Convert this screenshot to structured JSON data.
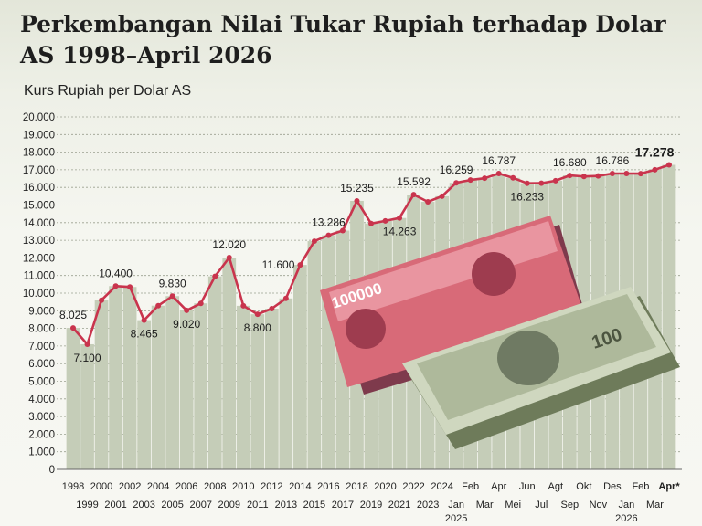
{
  "page": {
    "title": "Perkembangan Nilai Tukar Rupiah terhadap Dolar AS 1998–April 2026",
    "subtitle": "Kurs Rupiah per Dolar AS"
  },
  "colors": {
    "line": "#c9344d",
    "bar": "#c5cdb8",
    "grid": "#9aa08f"
  },
  "banknotes": {
    "rupiah": "100000",
    "dollar": "100"
  },
  "chart_data": {
    "type": "line",
    "ylim": [
      0,
      20000
    ],
    "yticks": [
      0,
      1000,
      2000,
      3000,
      4000,
      5000,
      6000,
      7000,
      8000,
      9000,
      10000,
      11000,
      12000,
      13000,
      14000,
      15000,
      16000,
      17000,
      18000,
      19000,
      20000
    ],
    "ytick_labels": [
      "0",
      "1.000",
      "2.000",
      "3.000",
      "4.000",
      "5.000",
      "6.000",
      "7.000",
      "8.000",
      "9.000",
      "10.000",
      "11.000",
      "12.000",
      "13.000",
      "14.000",
      "15.000",
      "16.000",
      "17.000",
      "18.000",
      "19.000",
      "20.000"
    ],
    "categories": [
      "1998",
      "1999",
      "2000",
      "2001",
      "2002",
      "2003",
      "2004",
      "2005",
      "2006",
      "2007",
      "2008",
      "2009",
      "2010",
      "2011",
      "2012",
      "2013",
      "2014",
      "2015",
      "2016",
      "2017",
      "2018",
      "2019",
      "2020",
      "2021",
      "2022",
      "2023",
      "2024",
      "Jan 2025",
      "Feb",
      "Mar",
      "Apr",
      "Mei",
      "Jun",
      "Jul",
      "Agt",
      "Sep",
      "Okt",
      "Nov",
      "Des",
      "Jan 2026",
      "Feb",
      "Mar",
      "Apr*"
    ],
    "xtick_labels": [
      {
        "text": "1998",
        "row": 0
      },
      {
        "text": "1999",
        "row": 1
      },
      {
        "text": "2000",
        "row": 0
      },
      {
        "text": "2001",
        "row": 1
      },
      {
        "text": "2002",
        "row": 0
      },
      {
        "text": "2003",
        "row": 1
      },
      {
        "text": "2004",
        "row": 0
      },
      {
        "text": "2005",
        "row": 1
      },
      {
        "text": "2006",
        "row": 0
      },
      {
        "text": "2007",
        "row": 1
      },
      {
        "text": "2008",
        "row": 0
      },
      {
        "text": "2009",
        "row": 1
      },
      {
        "text": "2010",
        "row": 0
      },
      {
        "text": "2011",
        "row": 1
      },
      {
        "text": "2012",
        "row": 0
      },
      {
        "text": "2013",
        "row": 1
      },
      {
        "text": "2014",
        "row": 0
      },
      {
        "text": "2015",
        "row": 1
      },
      {
        "text": "2016",
        "row": 0
      },
      {
        "text": "2017",
        "row": 1
      },
      {
        "text": "2018",
        "row": 0
      },
      {
        "text": "2019",
        "row": 1
      },
      {
        "text": "2020",
        "row": 0
      },
      {
        "text": "2021",
        "row": 1
      },
      {
        "text": "2022",
        "row": 0
      },
      {
        "text": "2023",
        "row": 1
      },
      {
        "text": "2024",
        "row": 0
      },
      {
        "text": "Jan",
        "row": 1
      },
      {
        "text": "Feb",
        "row": 0
      },
      {
        "text": "Mar",
        "row": 1
      },
      {
        "text": "Apr",
        "row": 0
      },
      {
        "text": "Mei",
        "row": 1
      },
      {
        "text": "Jun",
        "row": 0
      },
      {
        "text": "Jul",
        "row": 1
      },
      {
        "text": "Agt",
        "row": 0
      },
      {
        "text": "Sep",
        "row": 1
      },
      {
        "text": "Okt",
        "row": 0
      },
      {
        "text": "Nov",
        "row": 1
      },
      {
        "text": "Des",
        "row": 0
      },
      {
        "text": "Jan",
        "row": 1
      },
      {
        "text": "Feb",
        "row": 0
      },
      {
        "text": "Mar",
        "row": 1
      },
      {
        "text": "Apr*",
        "row": 0,
        "bold": true
      }
    ],
    "year_labels": [
      {
        "text": "2025",
        "index": 27
      },
      {
        "text": "2026",
        "index": 39
      }
    ],
    "series": [
      {
        "values": [
          8025,
          7100,
          9600,
          10400,
          10350,
          8465,
          9290,
          9830,
          9020,
          9420,
          10950,
          12020,
          9280,
          8800,
          9120,
          9700,
          11600,
          12950,
          13286,
          13550,
          15235,
          13950,
          14100,
          14263,
          15592,
          15180,
          15500,
          16259,
          16420,
          16520,
          16787,
          16540,
          16233,
          16240,
          16380,
          16680,
          16620,
          16650,
          16786,
          16790,
          16780,
          17000,
          17278
        ]
      }
    ],
    "data_labels": [
      {
        "index": 0,
        "text": "8.025",
        "pos": "above"
      },
      {
        "index": 1,
        "text": "7.100",
        "pos": "below"
      },
      {
        "index": 3,
        "text": "10.400",
        "pos": "above"
      },
      {
        "index": 5,
        "text": "8.465",
        "pos": "below"
      },
      {
        "index": 7,
        "text": "9.830",
        "pos": "above"
      },
      {
        "index": 8,
        "text": "9.020",
        "pos": "below"
      },
      {
        "index": 11,
        "text": "12.020",
        "pos": "above"
      },
      {
        "index": 13,
        "text": "8.800",
        "pos": "below"
      },
      {
        "index": 16,
        "text": "11.600",
        "pos": "left"
      },
      {
        "index": 18,
        "text": "13.286",
        "pos": "above"
      },
      {
        "index": 20,
        "text": "15.235",
        "pos": "above"
      },
      {
        "index": 23,
        "text": "14.263",
        "pos": "below"
      },
      {
        "index": 24,
        "text": "15.592",
        "pos": "above"
      },
      {
        "index": 27,
        "text": "16.259",
        "pos": "above"
      },
      {
        "index": 30,
        "text": "16.787",
        "pos": "above"
      },
      {
        "index": 32,
        "text": "16.233",
        "pos": "below"
      },
      {
        "index": 35,
        "text": "16.680",
        "pos": "above"
      },
      {
        "index": 38,
        "text": "16.786",
        "pos": "above"
      },
      {
        "index": 42,
        "text": "17.278",
        "pos": "above",
        "bold": true
      }
    ]
  }
}
